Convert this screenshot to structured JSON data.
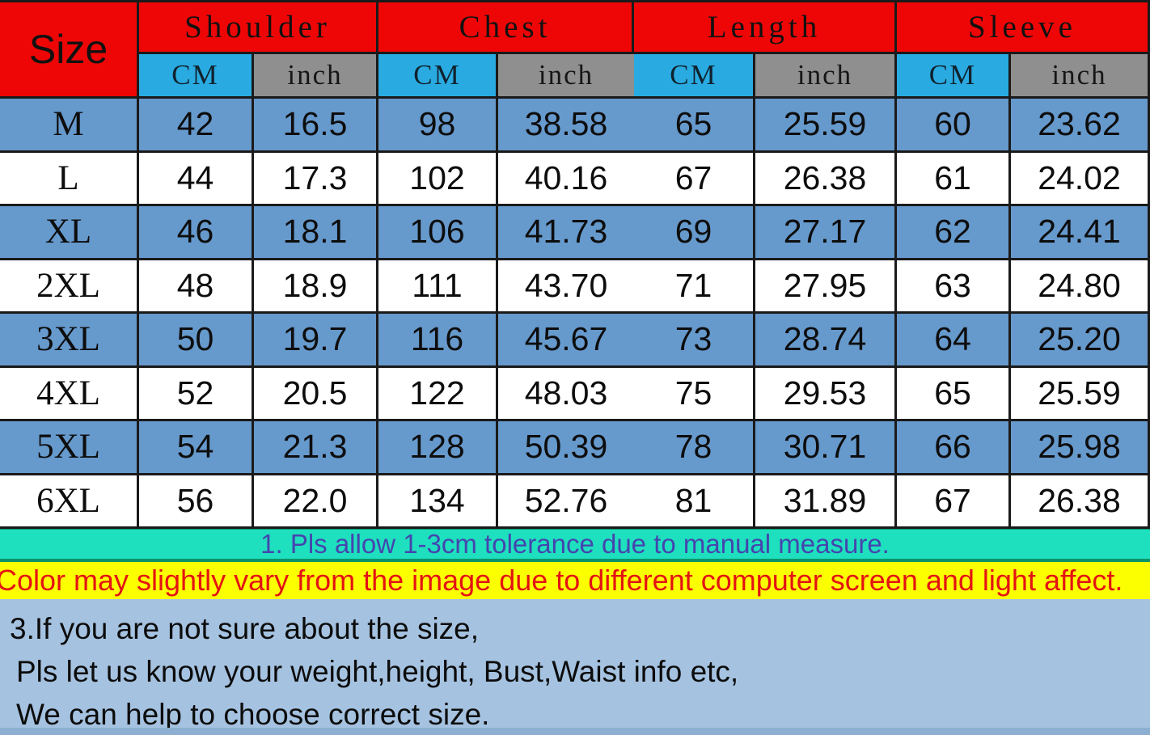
{
  "chart_data": {
    "type": "table",
    "corner_label": "Size",
    "column_groups": [
      {
        "label": "Shoulder"
      },
      {
        "label": "Chest"
      },
      {
        "label": "Length"
      },
      {
        "label": "Sleeve"
      }
    ],
    "unit_headers": [
      "CM",
      "inch",
      "CM",
      "inch",
      "CM",
      "inch",
      "CM",
      "inch"
    ],
    "rows": [
      {
        "size": "M",
        "values": [
          "42",
          "16.5",
          "98",
          "38.58",
          "65",
          "25.59",
          "60",
          "23.62"
        ]
      },
      {
        "size": "L",
        "values": [
          "44",
          "17.3",
          "102",
          "40.16",
          "67",
          "26.38",
          "61",
          "24.02"
        ]
      },
      {
        "size": "XL",
        "values": [
          "46",
          "18.1",
          "106",
          "41.73",
          "69",
          "27.17",
          "62",
          "24.41"
        ]
      },
      {
        "size": "2XL",
        "values": [
          "48",
          "18.9",
          "111",
          "43.70",
          "71",
          "27.95",
          "63",
          "24.80"
        ]
      },
      {
        "size": "3XL",
        "values": [
          "50",
          "19.7",
          "116",
          "45.67",
          "73",
          "28.74",
          "64",
          "25.20"
        ]
      },
      {
        "size": "4XL",
        "values": [
          "52",
          "20.5",
          "122",
          "48.03",
          "75",
          "29.53",
          "65",
          "25.59"
        ]
      },
      {
        "size": "5XL",
        "values": [
          "54",
          "21.3",
          "128",
          "50.39",
          "78",
          "30.71",
          "66",
          "25.98"
        ]
      },
      {
        "size": "6XL",
        "values": [
          "56",
          "22.0",
          "134",
          "52.76",
          "81",
          "31.89",
          "67",
          "26.38"
        ]
      }
    ]
  },
  "notes": {
    "tolerance": "1. Pls allow 1-3cm tolerance due to manual measure.",
    "color_disclaimer": "Color may slightly vary from the image due to different computer screen and light affect.",
    "help_line1": "3.If you are not sure about the size,",
    "help_line2": "Pls let us know your weight,height, Bust,Waist info etc,",
    "help_line3": "We can help to choose correct size."
  },
  "colors": {
    "header_red": "#ee0606",
    "cm_blue": "#29abe2",
    "inch_gray": "#8f8f8f",
    "row_blue": "#6699cc",
    "tolerance_bar": "#1ee0be",
    "tolerance_text": "#4545ae",
    "color_bar": "#fcff00",
    "color_text": "#e41313",
    "help_bg": "#a5c2e0"
  }
}
